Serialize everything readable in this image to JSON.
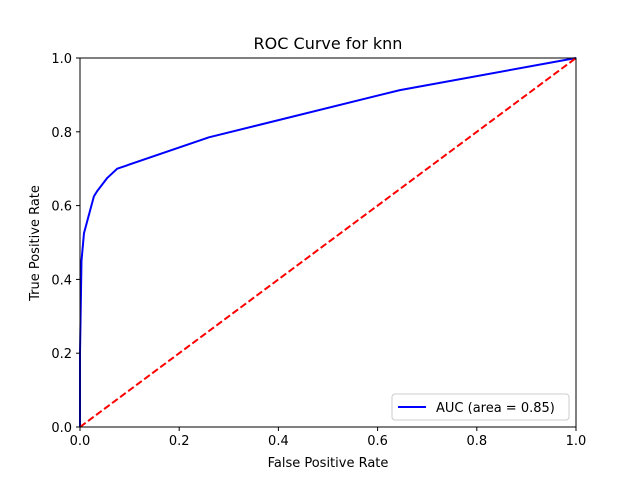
{
  "chart_data": {
    "type": "line",
    "title": "ROC Curve for knn",
    "xlabel": "False Positive Rate",
    "ylabel": "True Positive Rate",
    "xlim": [
      0.0,
      1.0
    ],
    "ylim": [
      0.0,
      1.0
    ],
    "xticks": [
      "0.0",
      "0.2",
      "0.4",
      "0.6",
      "0.8",
      "1.0"
    ],
    "yticks": [
      "0.0",
      "0.2",
      "0.4",
      "0.6",
      "0.8",
      "1.0"
    ],
    "grid": false,
    "legend_position": "lower right",
    "series": [
      {
        "name": "AUC (area = 0.85)",
        "color": "#0000ff",
        "style": "solid",
        "x": [
          0.0,
          0.0,
          0.003,
          0.008,
          0.02,
          0.028,
          0.035,
          0.055,
          0.075,
          0.26,
          0.645,
          1.0
        ],
        "y": [
          0.0,
          0.2,
          0.45,
          0.525,
          0.585,
          0.625,
          0.64,
          0.675,
          0.7,
          0.785,
          0.913,
          1.0
        ]
      },
      {
        "color": "#ff0000",
        "style": "dashed",
        "x": [
          0.0,
          1.0
        ],
        "y": [
          0.0,
          1.0
        ]
      }
    ]
  }
}
